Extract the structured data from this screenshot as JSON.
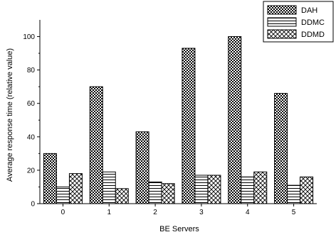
{
  "chart_data": {
    "type": "bar",
    "xlabel": "BE Servers",
    "ylabel": "Average response time (relative value)",
    "categories": [
      "0",
      "1",
      "2",
      "3",
      "4",
      "5"
    ],
    "ylim": [
      0,
      110
    ],
    "yticks": [
      "0",
      "20",
      "40",
      "60",
      "80",
      "100"
    ],
    "series": [
      {
        "name": "DAH",
        "values": [
          30,
          70,
          43,
          93,
          100,
          66
        ],
        "pattern": "checker"
      },
      {
        "name": "DDMC",
        "values": [
          10,
          19,
          13,
          17,
          16,
          11
        ],
        "pattern": "horizontal-lines"
      },
      {
        "name": "DDMD",
        "values": [
          18,
          9,
          12,
          17,
          19,
          16
        ],
        "pattern": "crosshatch"
      }
    ],
    "legend_position": "top-right",
    "grid": false,
    "colors": {
      "bar_stroke": "#000000",
      "background": "#ffffff"
    }
  }
}
